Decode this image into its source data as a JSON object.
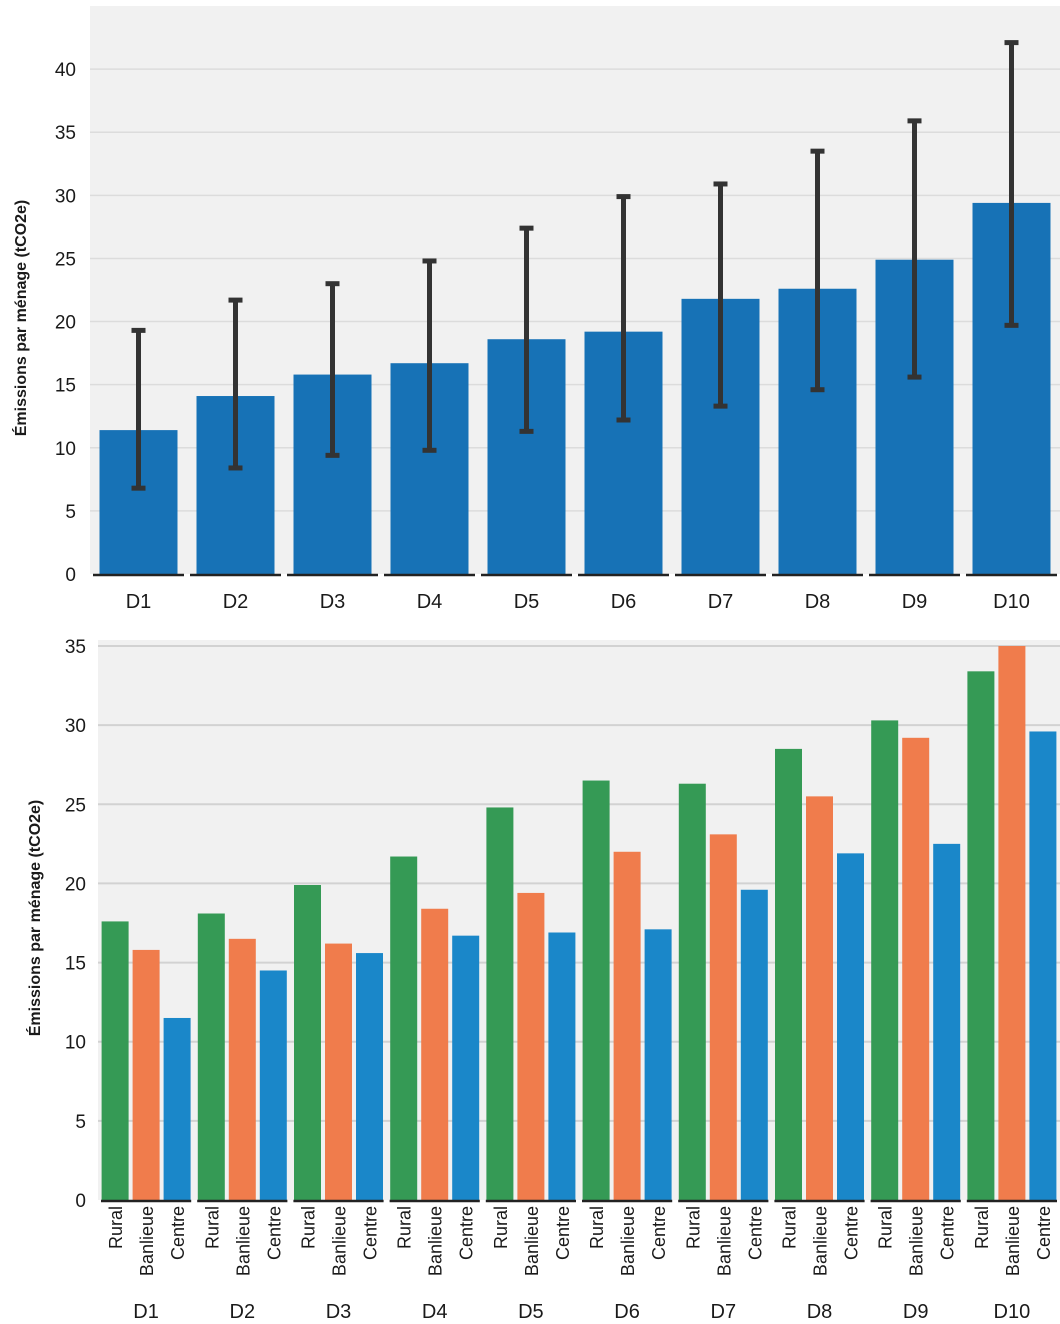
{
  "charts": [
    {
      "type": "bar",
      "ylabel": "Émissions par ménage (tCO2e)",
      "ylim": [
        0,
        45
      ],
      "yticks": [
        "0",
        "5",
        "10",
        "15",
        "20",
        "25",
        "30",
        "35",
        "40"
      ],
      "categories": [
        "D1",
        "D2",
        "D3",
        "D4",
        "D5",
        "D6",
        "D7",
        "D8",
        "D9",
        "D10"
      ],
      "values": [
        11.4,
        14.1,
        15.8,
        16.7,
        18.6,
        19.2,
        21.8,
        22.6,
        24.9,
        29.4
      ],
      "error_low": [
        6.8,
        8.4,
        9.4,
        9.8,
        11.3,
        12.2,
        13.3,
        14.6,
        15.6,
        19.7
      ],
      "error_high": [
        19.3,
        21.7,
        23.0,
        24.8,
        27.4,
        29.9,
        30.9,
        33.5,
        35.9,
        42.1
      ],
      "bar_color": "#1772b6",
      "error_color": "#333333",
      "grid": true
    },
    {
      "type": "bar",
      "ylabel": "Émissions par ménage (tCO2e)",
      "ylim": [
        0,
        35
      ],
      "yticks": [
        "0",
        "5",
        "10",
        "15",
        "20",
        "25",
        "30",
        "35"
      ],
      "categories": [
        "D1",
        "D2",
        "D3",
        "D4",
        "D5",
        "D6",
        "D7",
        "D8",
        "D9",
        "D10"
      ],
      "subcategories": [
        "Rural",
        "Banlieue",
        "Centre"
      ],
      "series": [
        {
          "values": [
            17.6,
            18.1,
            19.9,
            21.7,
            24.8,
            26.5,
            26.3,
            28.5,
            30.3,
            33.4
          ],
          "color": "#359a55"
        },
        {
          "values": [
            15.8,
            16.5,
            16.2,
            18.4,
            19.4,
            22.0,
            23.1,
            25.5,
            29.2,
            35.0
          ],
          "color": "#f07c4c"
        },
        {
          "values": [
            11.5,
            14.5,
            15.6,
            16.7,
            16.9,
            17.1,
            19.6,
            21.9,
            22.5,
            29.6
          ],
          "color": "#1a87c9"
        }
      ],
      "grid": true
    }
  ]
}
